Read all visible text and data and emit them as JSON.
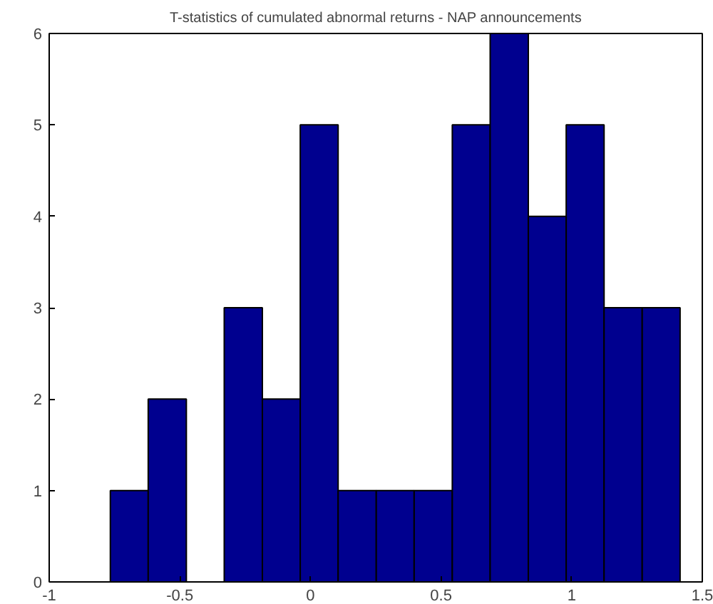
{
  "chart_data": {
    "type": "histogram",
    "title": "T-statistics of cumulated abnormal returns - NAP announcements",
    "bins": [
      -0.766,
      -0.621,
      -0.475,
      -0.33,
      -0.184,
      -0.039,
      0.106,
      0.252,
      0.397,
      0.543,
      0.688,
      0.834,
      0.979,
      1.124,
      1.27,
      1.415
    ],
    "values": [
      1,
      2,
      0,
      3,
      2,
      5,
      1,
      1,
      1,
      5,
      6,
      4,
      5,
      3,
      3
    ],
    "color": "#00008f",
    "xlim": [
      -1,
      1.5
    ],
    "xticks": [
      -1,
      -0.5,
      0,
      0.5,
      1,
      1.5
    ],
    "ylim": [
      0,
      6
    ],
    "yticks": [
      0,
      1,
      2,
      3,
      4,
      5,
      6
    ],
    "grid": false
  }
}
